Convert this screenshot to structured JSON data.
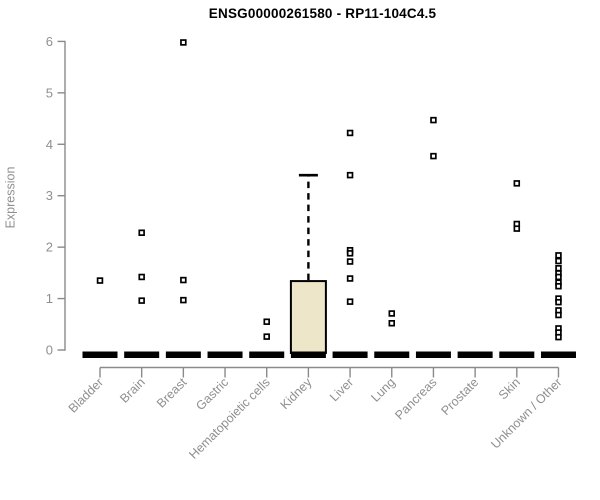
{
  "chart_data": {
    "type": "boxplot",
    "title": "ENSG00000261580 - RP11-104C4.5",
    "ylabel": "Expression",
    "xlabel": "",
    "ylim": [
      0,
      6
    ],
    "yticks": [
      0,
      1,
      2,
      3,
      4,
      5,
      6
    ],
    "grid": false,
    "legend": "none",
    "categories": [
      "Bladder",
      "Brain",
      "Breast",
      "Gastric",
      "Hematopoietic cells",
      "Kidney",
      "Liver",
      "Lung",
      "Pancreas",
      "Prostate",
      "Skin",
      "Unknown / Other"
    ],
    "boxes": [
      {
        "category": "Bladder",
        "q1": 0,
        "median": 0,
        "q3": 0,
        "whisker_low": 0,
        "whisker_high": 0,
        "outliers": [
          1.35
        ]
      },
      {
        "category": "Brain",
        "q1": 0,
        "median": 0,
        "q3": 0,
        "whisker_low": 0,
        "whisker_high": 0,
        "outliers": [
          2.28,
          1.42,
          0.96
        ]
      },
      {
        "category": "Breast",
        "q1": 0,
        "median": 0,
        "q3": 0,
        "whisker_low": 0,
        "whisker_high": 0,
        "outliers": [
          5.98,
          1.36,
          0.97
        ]
      },
      {
        "category": "Gastric",
        "q1": 0,
        "median": 0,
        "q3": 0,
        "whisker_low": 0,
        "whisker_high": 0,
        "outliers": []
      },
      {
        "category": "Hematopoietic cells",
        "q1": 0,
        "median": 0,
        "q3": 0,
        "whisker_low": 0,
        "whisker_high": 0,
        "outliers": [
          0.55,
          0.26
        ]
      },
      {
        "category": "Kidney",
        "q1": 0,
        "median": 0,
        "q3": 1.34,
        "whisker_low": 0,
        "whisker_high": 3.4,
        "outliers": []
      },
      {
        "category": "Liver",
        "q1": 0,
        "median": 0,
        "q3": 0,
        "whisker_low": 0,
        "whisker_high": 0,
        "outliers": [
          4.22,
          3.4,
          1.94,
          1.88,
          1.72,
          1.39,
          0.94
        ]
      },
      {
        "category": "Lung",
        "q1": 0,
        "median": 0,
        "q3": 0,
        "whisker_low": 0,
        "whisker_high": 0,
        "outliers": [
          0.71,
          0.52
        ]
      },
      {
        "category": "Pancreas",
        "q1": 0,
        "median": 0,
        "q3": 0,
        "whisker_low": 0,
        "whisker_high": 0,
        "outliers": [
          4.47,
          3.77
        ]
      },
      {
        "category": "Prostate",
        "q1": 0,
        "median": 0,
        "q3": 0,
        "whisker_low": 0,
        "whisker_high": 0,
        "outliers": []
      },
      {
        "category": "Skin",
        "q1": 0,
        "median": 0,
        "q3": 0,
        "whisker_low": 0,
        "whisker_high": 0,
        "outliers": [
          3.24,
          2.45,
          2.36
        ]
      },
      {
        "category": "Unknown / Other",
        "q1": 0,
        "median": 0,
        "q3": 0,
        "whisker_low": 0,
        "whisker_high": 0,
        "outliers": [
          1.84,
          1.73,
          1.59,
          1.49,
          1.42,
          1.31,
          1.24,
          1.0,
          0.93,
          0.77,
          0.68,
          0.42,
          0.34,
          0.25
        ]
      }
    ],
    "colors": {
      "box_fill": "#EDE6C8",
      "box_stroke": "#000000",
      "median_bar": "#000000",
      "marker_stroke": "#000000",
      "marker_fill": "#FFFFFF",
      "axis_line": "#8A8A8A",
      "tick_text": "#8F8F8F",
      "title_text": "#000000",
      "background": "#FFFFFF"
    }
  }
}
